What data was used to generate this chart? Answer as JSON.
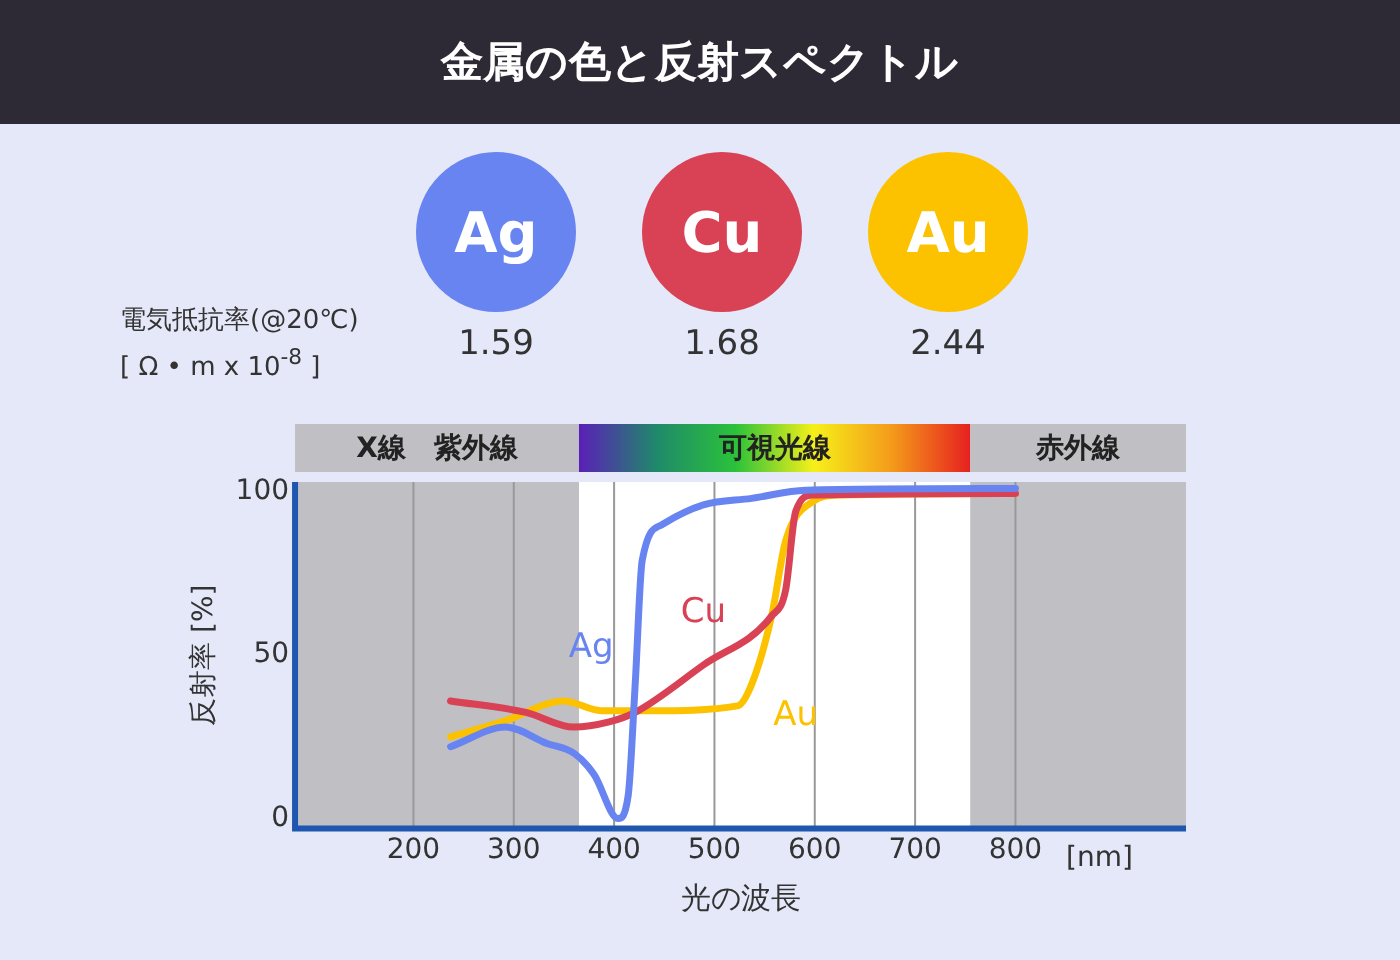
{
  "chart_data": [
    {
      "type": "other",
      "title": "金属の色と反射スペクトル",
      "ylabel": "電気抵抗率(@20℃)\n[ Ω • m x 10$^{-8}$ ]",
      "categories": [
        "Ag",
        "Cu",
        "Au"
      ],
      "values": [
        1.59,
        1.68,
        2.44
      ],
      "colors": [
        "#6884f0",
        "#d94155",
        "#fcc200"
      ],
      "data_labels": true
    },
    {
      "type": "line",
      "xlabel": "光の波長",
      "ylabel": "反射率 [%]",
      "xlim": [
        82,
        970
      ],
      "ylim": [
        -3,
        103
      ],
      "xticks": [
        200,
        300,
        400,
        500,
        600,
        700,
        800
      ],
      "yticks": [
        0,
        50,
        100
      ],
      "grid": "x",
      "legend": false,
      "marker": "none",
      "line_style": "solid",
      "series": [
        {
          "name": "Ag",
          "color": "#6884f0",
          "x": [
            237,
            292,
            333,
            360,
            380,
            404,
            414,
            421,
            428,
            448,
            489,
            537,
            591,
            800
          ],
          "values": [
            22,
            28,
            23,
            20,
            13.5,
            0,
            7,
            41,
            79,
            90,
            96,
            98,
            100.5,
            101
          ]
        },
        {
          "name": "Cu",
          "color": "#d94155",
          "x": [
            237,
            312,
            360,
            394,
            421,
            489,
            557,
            571,
            581,
            598,
            800
          ],
          "values": [
            36,
            32.5,
            28,
            29.5,
            32.5,
            47,
            62,
            70,
            94,
            99,
            99.5
          ]
        },
        {
          "name": "Au",
          "color": "#fcc200",
          "x": [
            237,
            292,
            350,
            387,
            435,
            523,
            537,
            557,
            571,
            598,
            625,
            800
          ],
          "values": [
            25,
            30,
            36,
            33,
            33,
            34.5,
            41,
            62,
            85,
            97,
            99,
            99.5
          ]
        }
      ],
      "bands": [
        {
          "axis": "x",
          "from": 82,
          "to": 365,
          "label": "X線　紫外線",
          "color": "#c0bfc4"
        },
        {
          "axis": "x",
          "from": 365,
          "to": 755,
          "label": "可視光線",
          "color": "#ffffff"
        },
        {
          "axis": "x",
          "from": 755,
          "to": 970,
          "label": "赤外線",
          "color": "#c0bfc4"
        }
      ],
      "annotations": [
        "[nm]"
      ]
    }
  ]
}
